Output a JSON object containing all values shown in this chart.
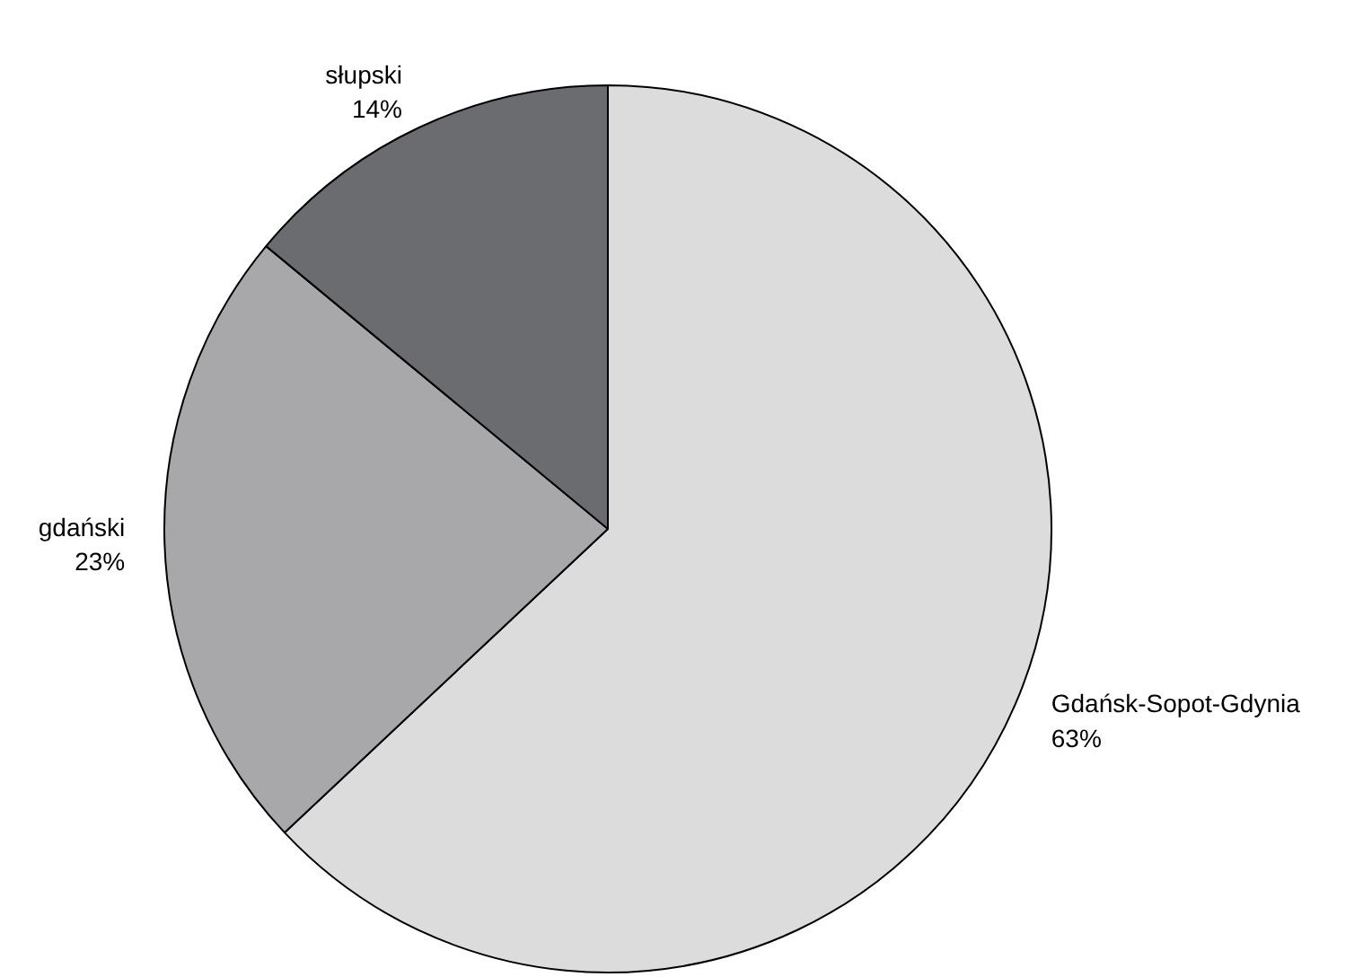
{
  "chart_data": {
    "type": "pie",
    "categories": [
      "Gdańsk-Sopot-Gdynia",
      "gdański",
      "słupski"
    ],
    "values": [
      63,
      23,
      14
    ],
    "value_labels": [
      "63%",
      "23%",
      "14%"
    ],
    "colors": [
      "#dcdcdd",
      "#a8a8aa",
      "#6b6c70"
    ]
  }
}
